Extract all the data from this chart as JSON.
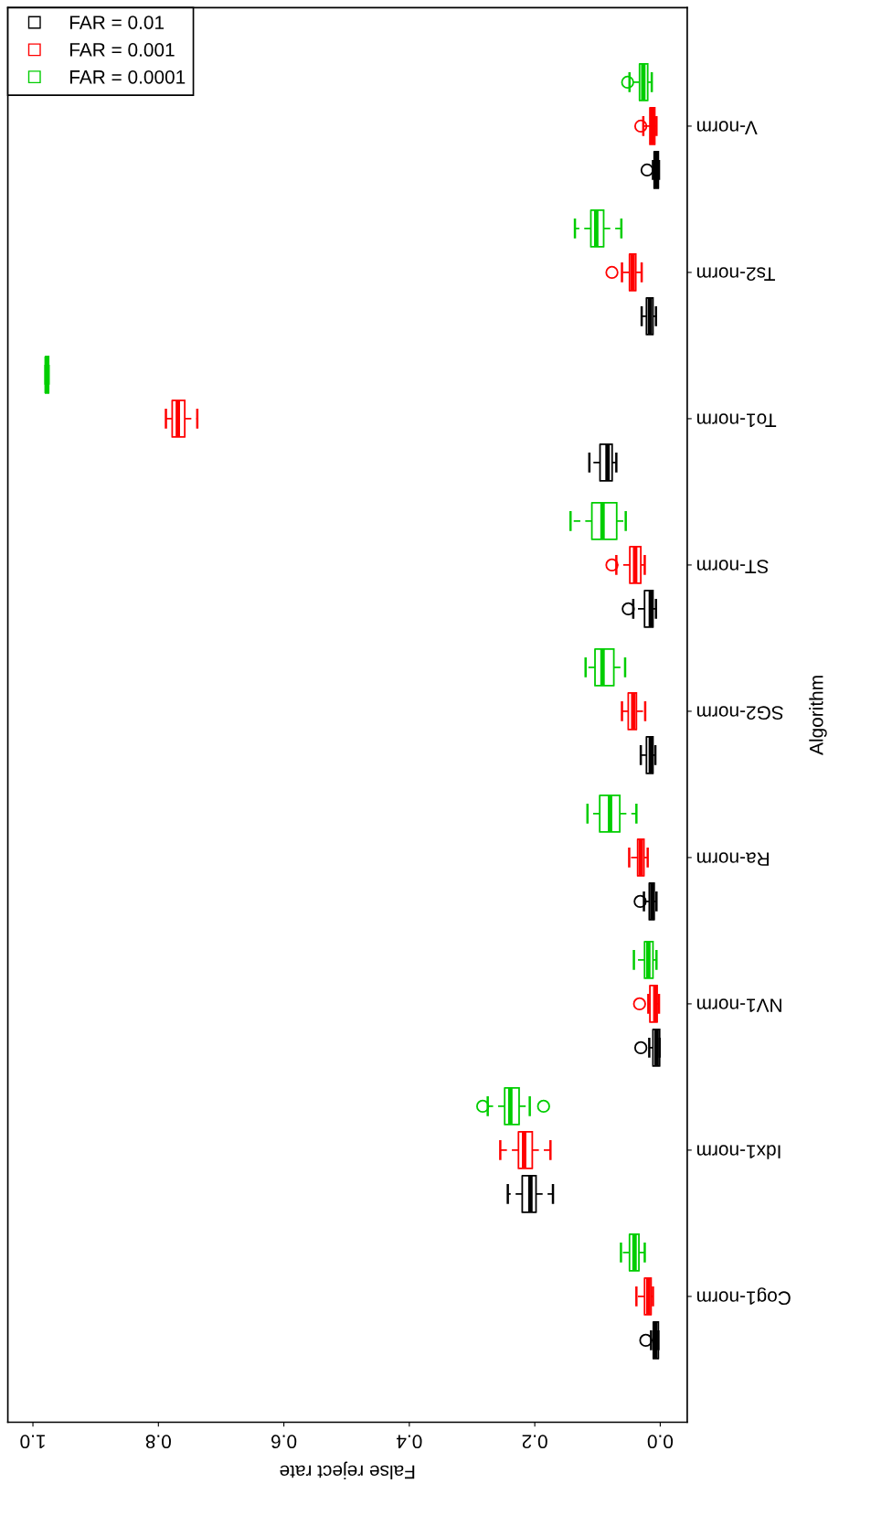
{
  "chart_data": {
    "type": "box",
    "orientation": "horizontal",
    "xlabel": "False reject rate",
    "ylabel": "Algorithm",
    "categories": [
      "V-norm",
      "Ts2-norm",
      "To1-norm",
      "ST-norm",
      "SG2-norm",
      "Ra-norm",
      "NV1-norm",
      "Idx1-norm",
      "Cog1-norm"
    ],
    "xlim": [
      1.04,
      -0.043
    ],
    "xticks": [
      {
        "value": 0,
        "label": "0.0"
      },
      {
        "value": 0.2,
        "label": "0.2"
      },
      {
        "value": 0.4,
        "label": "0.4"
      },
      {
        "value": 0.6,
        "label": "0.6"
      },
      {
        "value": 0.8,
        "label": "0.8"
      },
      {
        "value": 1,
        "label": "1.0"
      }
    ],
    "grid": false,
    "legend": "top left",
    "series": [
      {
        "name": "FAR = 0.01",
        "color": "#000000",
        "boxes": [
          {
            "low": 0.002,
            "q1": 0.003,
            "median": 0.006,
            "q3": 0.0097,
            "high": 0.0116,
            "outliers": [
              0.021
            ]
          },
          {
            "low": 0.0068,
            "q1": 0.0116,
            "median": 0.0165,
            "q3": 0.022,
            "high": 0.0296
          },
          {
            "low": 0.07,
            "q1": 0.0767,
            "median": 0.084,
            "q3": 0.096,
            "high": 0.113
          },
          {
            "low": 0.0068,
            "q1": 0.0116,
            "median": 0.015,
            "q3": 0.025,
            "high": 0.043,
            "outliers": [
              0.051
            ]
          },
          {
            "low": 0.0078,
            "q1": 0.0116,
            "median": 0.015,
            "q3": 0.022,
            "high": 0.031
          },
          {
            "low": 0.006,
            "q1": 0.0097,
            "median": 0.0127,
            "q3": 0.0175,
            "high": 0.026,
            "outliers": [
              0.032
            ]
          },
          {
            "low": 0.001,
            "q1": 0.001,
            "median": 0.0058,
            "q3": 0.0116,
            "high": 0.0175,
            "outliers": [
              0.031
            ]
          },
          {
            "low": 0.171,
            "q1": 0.198,
            "median": 0.207,
            "q3": 0.22,
            "high": 0.243
          },
          {
            "low": 0.003,
            "q1": 0.003,
            "median": 0.0078,
            "q3": 0.011,
            "high": 0.0146,
            "outliers": [
              0.023
            ]
          }
        ]
      },
      {
        "name": "FAR = 0.001",
        "color": "#ff0000",
        "boxes": [
          {
            "low": 0.006,
            "q1": 0.0087,
            "median": 0.0127,
            "q3": 0.0165,
            "high": 0.027,
            "outliers": [
              0.031
            ]
          },
          {
            "low": 0.0296,
            "q1": 0.039,
            "median": 0.044,
            "q3": 0.049,
            "high": 0.061,
            "outliers": [
              0.077
            ]
          },
          {
            "low": 0.738,
            "q1": 0.758,
            "median": 0.769,
            "q3": 0.778,
            "high": 0.788
          },
          {
            "low": 0.0247,
            "q1": 0.031,
            "median": 0.04,
            "q3": 0.0485,
            "high": 0.07,
            "outliers": [
              0.077
            ]
          },
          {
            "low": 0.024,
            "q1": 0.038,
            "median": 0.043,
            "q3": 0.051,
            "high": 0.061
          },
          {
            "low": 0.02,
            "q1": 0.026,
            "median": 0.031,
            "q3": 0.036,
            "high": 0.0495
          },
          {
            "low": 0.002,
            "q1": 0.005,
            "median": 0.0078,
            "q3": 0.0165,
            "high": 0.019,
            "outliers": [
              0.033
            ]
          },
          {
            "low": 0.175,
            "q1": 0.204,
            "median": 0.217,
            "q3": 0.226,
            "high": 0.255
          },
          {
            "low": 0.0116,
            "q1": 0.0146,
            "median": 0.019,
            "q3": 0.025,
            "high": 0.038
          }
        ]
      },
      {
        "name": "FAR = 0.0001",
        "color": "#00cd00",
        "boxes": [
          {
            "low": 0.0135,
            "q1": 0.02,
            "median": 0.027,
            "q3": 0.033,
            "high": 0.049,
            "outliers": [
              0.052
            ]
          },
          {
            "low": 0.062,
            "q1": 0.0902,
            "median": 0.102,
            "q3": 0.1106,
            "high": 0.136
          },
          {
            "low": 0.975,
            "q1": 0.975,
            "median": 0.978,
            "q3": 0.98,
            "high": 0.98
          },
          {
            "low": 0.055,
            "q1": 0.0694,
            "median": 0.092,
            "q3": 0.109,
            "high": 0.143
          },
          {
            "low": 0.056,
            "q1": 0.074,
            "median": 0.092,
            "q3": 0.104,
            "high": 0.119
          },
          {
            "low": 0.038,
            "q1": 0.0645,
            "median": 0.08,
            "q3": 0.0965,
            "high": 0.116
          },
          {
            "low": 0.006,
            "q1": 0.0116,
            "median": 0.019,
            "q3": 0.025,
            "high": 0.042
          },
          {
            "low": 0.208,
            "q1": 0.225,
            "median": 0.239,
            "q3": 0.248,
            "high": 0.275,
            "outliers": [
              0.283,
              0.186
            ]
          },
          {
            "low": 0.0247,
            "q1": 0.034,
            "median": 0.041,
            "q3": 0.049,
            "high": 0.0626
          }
        ]
      }
    ]
  }
}
